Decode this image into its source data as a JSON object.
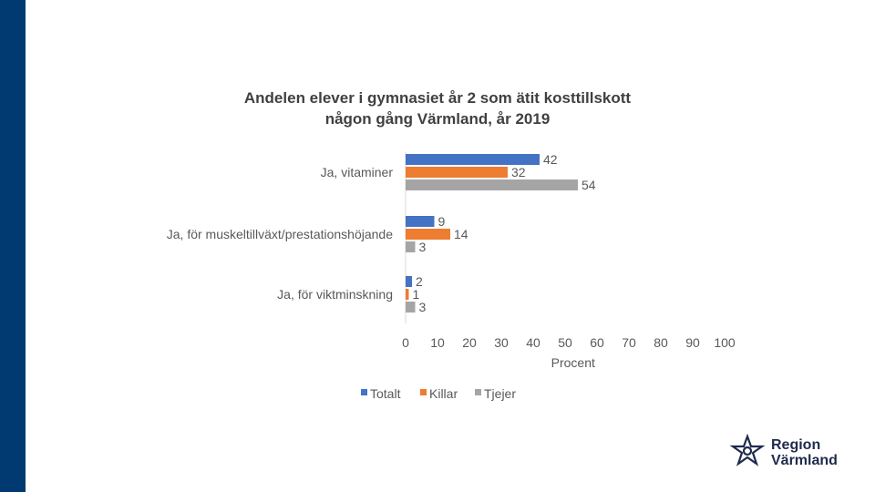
{
  "colors": {
    "stripe": "#003a70",
    "text": "#595959",
    "axis": "#d9d9d9",
    "logo": "#1f2a4d"
  },
  "title_lines": [
    "Andelen elever i gymnasiet år 2 som ätit kosttillskott",
    "någon gång Värmland, år 2019"
  ],
  "logo": {
    "icon": "region-varmland-star-icon",
    "line1": "Region",
    "line2": "Värmland"
  },
  "chart_data": {
    "type": "bar",
    "orientation": "horizontal",
    "title": "Andelen elever i gymnasiet år 2 som ätit kosttillskott någon gång Värmland, år 2019",
    "categories": [
      "Ja, vitaminer",
      "Ja, för muskeltillväxt/prestationshöjande",
      "Ja, för viktminskning"
    ],
    "series": [
      {
        "name": "Totalt",
        "color": "#4472c4",
        "values": [
          42,
          9,
          2
        ]
      },
      {
        "name": "Killar",
        "color": "#ed7d31",
        "values": [
          32,
          14,
          1
        ]
      },
      {
        "name": "Tjejer",
        "color": "#a5a5a5",
        "values": [
          54,
          3,
          3
        ]
      }
    ],
    "xlabel": "Procent",
    "xlim": [
      0,
      100
    ],
    "xticks": [
      0,
      10,
      20,
      30,
      40,
      50,
      60,
      70,
      80,
      90,
      100
    ],
    "data_labels": true,
    "legend_position": "bottom",
    "grid": false
  }
}
